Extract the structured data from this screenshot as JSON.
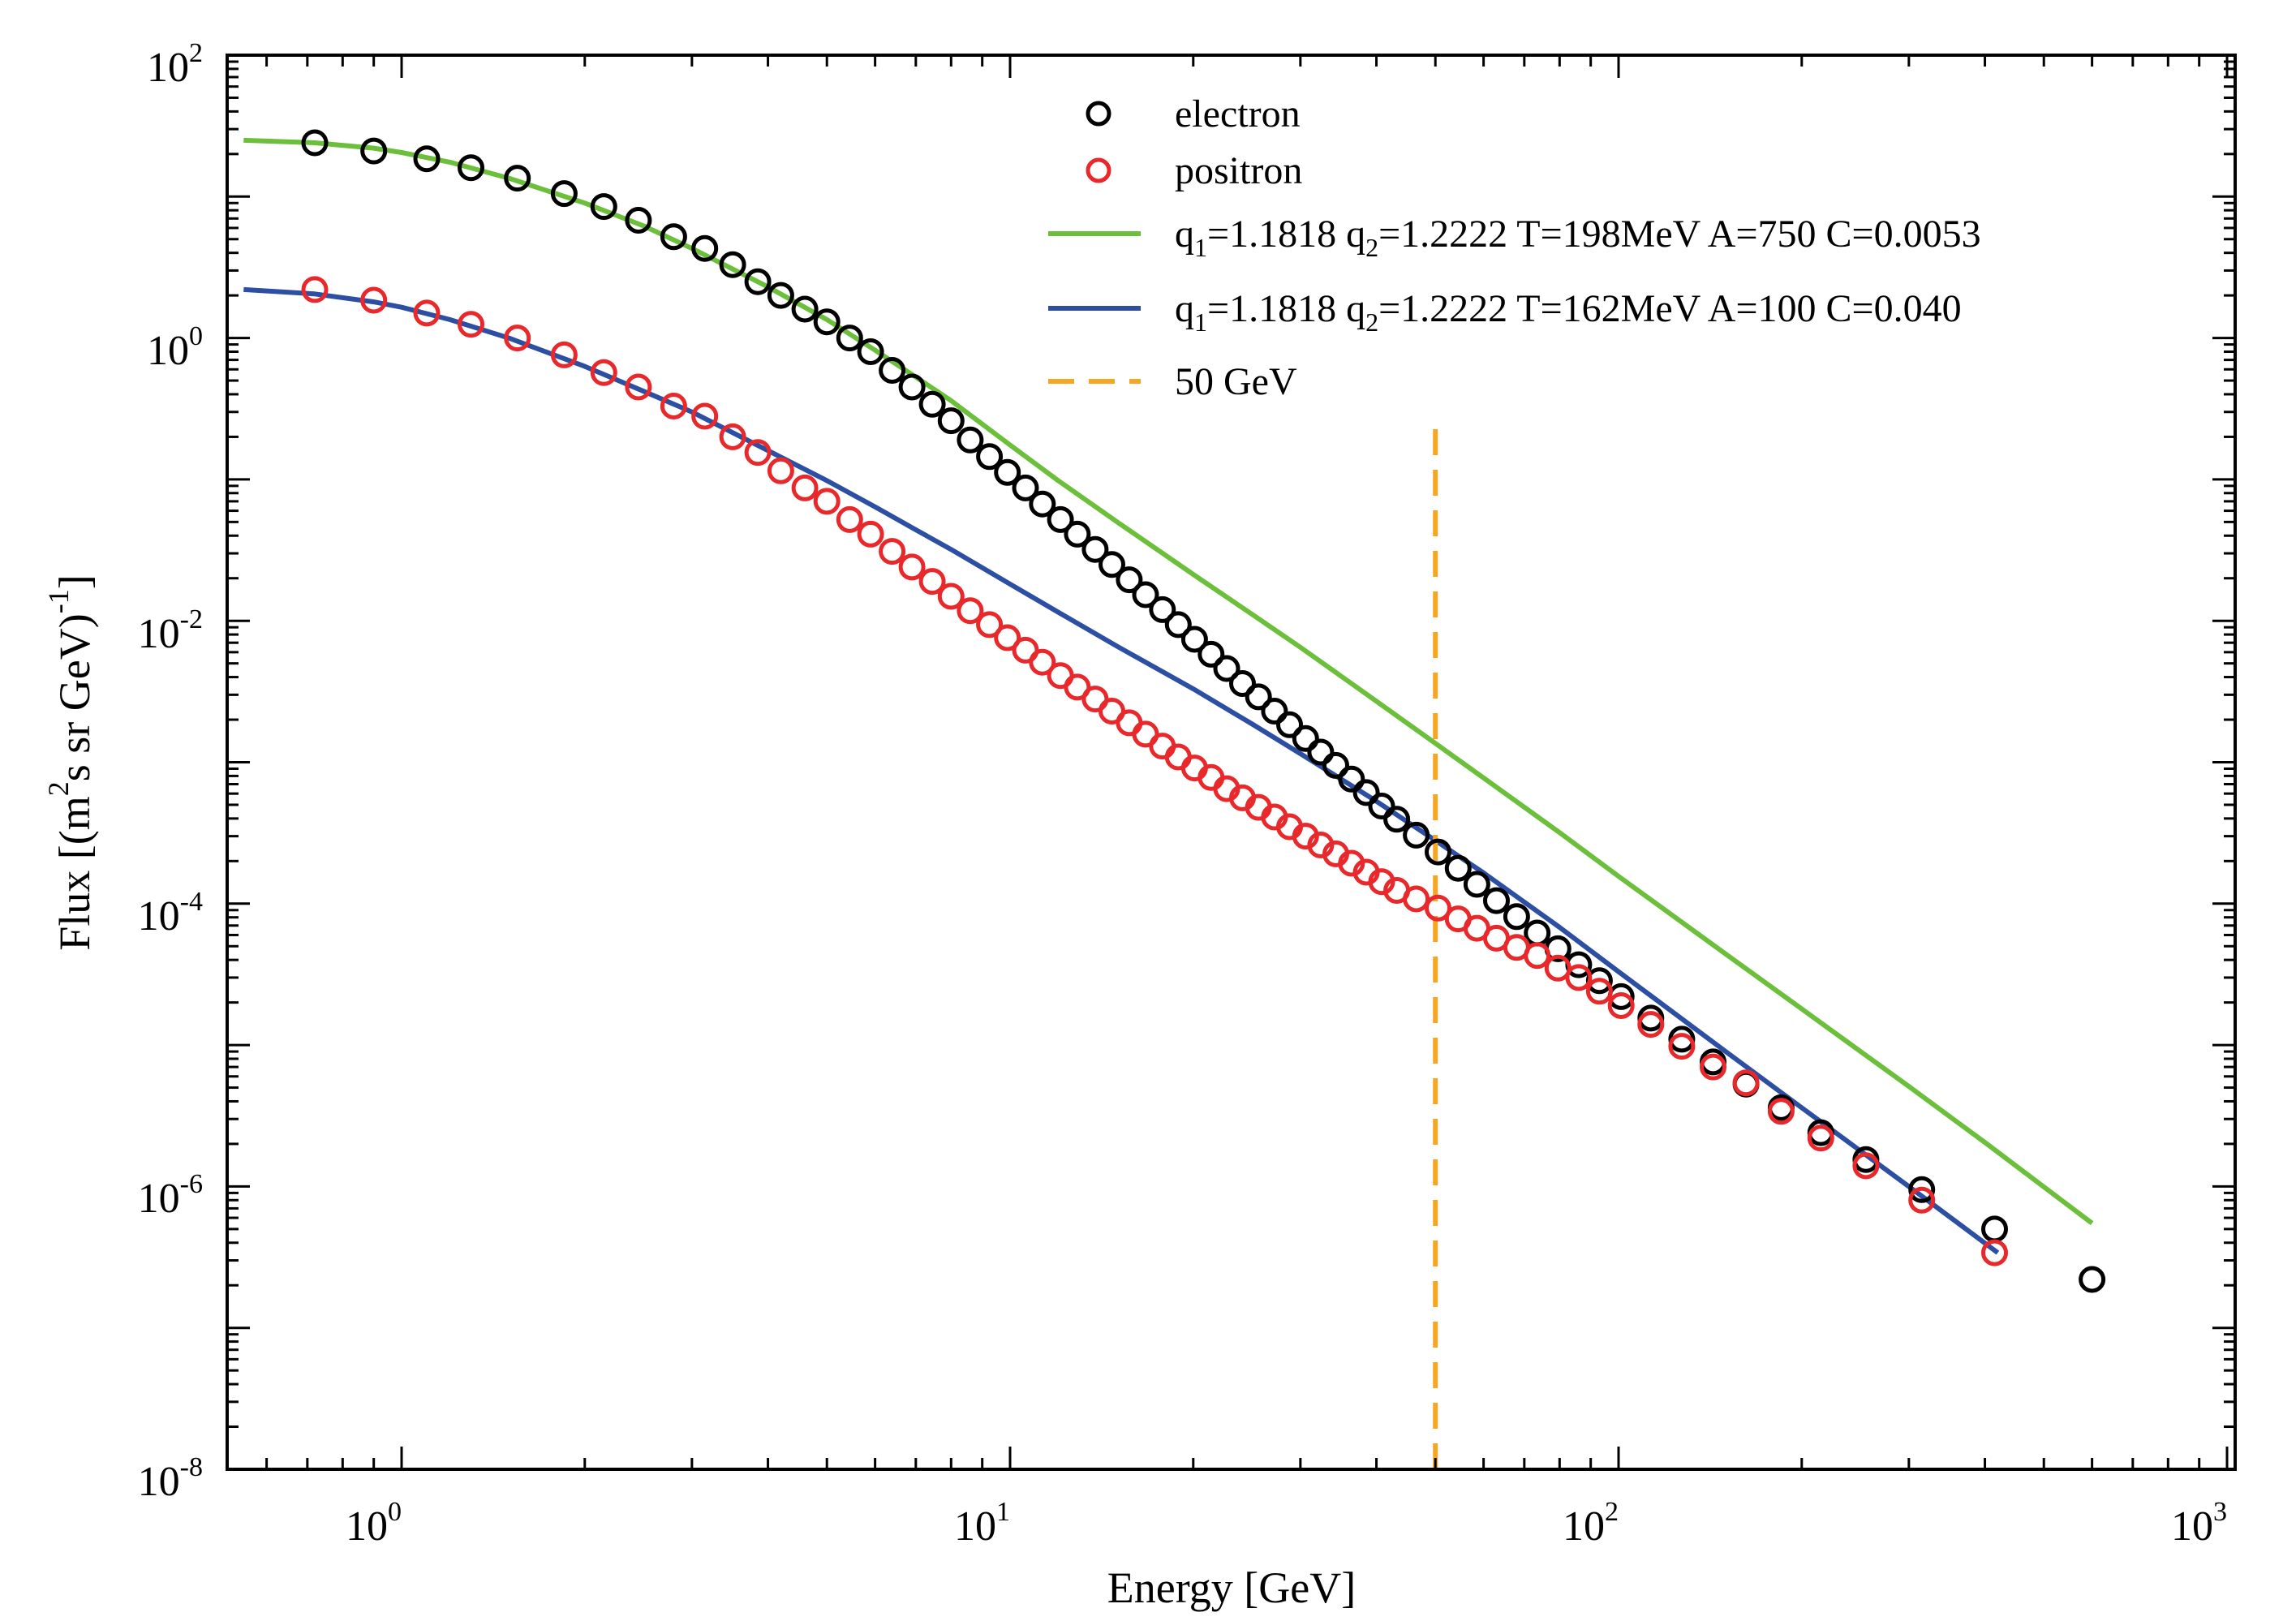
{
  "chart_data": {
    "type": "scatter",
    "xlabel": "Energy [GeV]",
    "ylabel": {
      "prefix": "Flux [(m",
      "exp1": "2",
      "mid": "s sr GeV)",
      "exp2": "-1",
      "suffix": "]"
    },
    "xscale": "log",
    "yscale": "log",
    "xlim": [
      0.55,
      1000
    ],
    "ylim": [
      1e-08,
      100
    ],
    "x_ticks": [
      {
        "base": "10",
        "exp": "0",
        "value": 1
      },
      {
        "base": "10",
        "exp": "1",
        "value": 10
      },
      {
        "base": "10",
        "exp": "2",
        "value": 100
      },
      {
        "base": "10",
        "exp": "3",
        "value": 1000
      }
    ],
    "y_ticks": [
      {
        "base": "10",
        "exp": "2",
        "value": 100
      },
      {
        "base": "10",
        "exp": "0",
        "value": 1
      },
      {
        "base": "10",
        "exp": "-2",
        "value": 0.01
      },
      {
        "base": "10",
        "exp": "-4",
        "value": 0.0001
      },
      {
        "base": "10",
        "exp": "-6",
        "value": 1e-06
      },
      {
        "base": "10",
        "exp": "-8",
        "value": 1e-08
      }
    ],
    "grid": false,
    "legend_position": "top-right",
    "series": [
      {
        "name": "electron",
        "kind": "markers",
        "color": "#000000",
        "x": [
          0.72,
          0.9,
          1.1,
          1.3,
          1.55,
          1.85,
          2.15,
          2.45,
          2.8,
          3.15,
          3.5,
          3.85,
          4.2,
          4.6,
          5.0,
          5.45,
          5.9,
          6.4,
          6.9,
          7.45,
          8.0,
          8.6,
          9.25,
          9.9,
          10.6,
          11.3,
          12.1,
          12.9,
          13.8,
          14.7,
          15.7,
          16.7,
          17.8,
          18.9,
          20.1,
          21.4,
          22.7,
          24.1,
          25.6,
          27.2,
          28.8,
          30.6,
          32.4,
          34.3,
          36.4,
          38.5,
          40.8,
          43.2,
          46.5,
          50.5,
          54.5,
          58.5,
          63.0,
          68.0,
          73.5,
          79.5,
          86.0,
          93.0,
          101.0,
          113.0,
          127.0,
          143.0,
          162.0,
          185.0,
          215.0,
          255.0,
          315.0,
          415.0,
          600.0
        ],
        "y": [
          24,
          21,
          18.5,
          16,
          13.5,
          10.5,
          8.5,
          6.8,
          5.2,
          4.3,
          3.3,
          2.5,
          2.0,
          1.6,
          1.3,
          1.0,
          0.8,
          0.59,
          0.45,
          0.34,
          0.26,
          0.19,
          0.145,
          0.112,
          0.087,
          0.067,
          0.052,
          0.041,
          0.032,
          0.025,
          0.0195,
          0.0153,
          0.012,
          0.0094,
          0.0074,
          0.0058,
          0.0046,
          0.0036,
          0.0029,
          0.0023,
          0.00184,
          0.00147,
          0.00118,
          0.00095,
          0.00076,
          0.00061,
          0.00049,
          0.000395,
          0.000305,
          0.000232,
          0.000178,
          0.000137,
          0.000105,
          8.1e-05,
          6.2e-05,
          4.8e-05,
          3.7e-05,
          2.85e-05,
          2.2e-05,
          1.55e-05,
          1.1e-05,
          7.6e-06,
          5.3e-06,
          3.6e-06,
          2.4e-06,
          1.55e-06,
          9.5e-07,
          5e-07,
          2.2e-07
        ]
      },
      {
        "name": "positron",
        "kind": "markers",
        "color": "#e8282b",
        "x": [
          0.72,
          0.9,
          1.1,
          1.3,
          1.55,
          1.85,
          2.15,
          2.45,
          2.8,
          3.15,
          3.5,
          3.85,
          4.2,
          4.6,
          5.0,
          5.45,
          5.9,
          6.4,
          6.9,
          7.45,
          8.0,
          8.6,
          9.25,
          9.9,
          10.6,
          11.3,
          12.1,
          12.9,
          13.8,
          14.7,
          15.7,
          16.7,
          17.8,
          18.9,
          20.1,
          21.4,
          22.7,
          24.1,
          25.6,
          27.2,
          28.8,
          30.6,
          32.4,
          34.3,
          36.4,
          38.5,
          40.8,
          43.2,
          46.5,
          50.5,
          54.5,
          58.5,
          63.0,
          68.0,
          73.5,
          79.5,
          86.0,
          93.0,
          101.0,
          113.0,
          127.0,
          143.0,
          162.0,
          185.0,
          215.0,
          255.0,
          315.0,
          415.0
        ],
        "y": [
          2.2,
          1.85,
          1.5,
          1.25,
          1.0,
          0.76,
          0.57,
          0.45,
          0.33,
          0.28,
          0.2,
          0.155,
          0.115,
          0.087,
          0.07,
          0.052,
          0.041,
          0.031,
          0.024,
          0.019,
          0.0149,
          0.0118,
          0.0094,
          0.0076,
          0.0062,
          0.0051,
          0.0041,
          0.0034,
          0.0028,
          0.0023,
          0.0019,
          0.00158,
          0.0013,
          0.00109,
          0.00091,
          0.00078,
          0.00065,
          0.00056,
          0.00048,
          0.00041,
          0.00035,
          0.0003,
          0.00026,
          0.000225,
          0.000193,
          0.000167,
          0.000143,
          0.000124,
          0.000108,
          9.3e-05,
          7.8e-05,
          6.7e-05,
          5.7e-05,
          4.9e-05,
          4.3e-05,
          3.5e-05,
          3e-05,
          2.4e-05,
          1.9e-05,
          1.4e-05,
          9.8e-06,
          7e-06,
          5.4e-06,
          3.4e-06,
          2.2e-06,
          1.4e-06,
          8e-07,
          3.4e-07
        ]
      },
      {
        "name_parts": [
          "q",
          "1",
          "=1.1818 q",
          "2",
          "=1.2222 T=198MeV A=750 C=0.0053"
        ],
        "kind": "line",
        "color": "#6bbf3b",
        "x": [
          0.55,
          0.72,
          0.9,
          1.0,
          1.2,
          1.5,
          2.0,
          2.5,
          3.0,
          4.0,
          5.0,
          6.0,
          7.0,
          8.0,
          10.0,
          12.0,
          15.0,
          20.0,
          25.0,
          30.0,
          40.0,
          50.0,
          60.0,
          80.0,
          100.0,
          150.0,
          200.0,
          300.0,
          400.0,
          600.0
        ],
        "y": [
          25,
          24,
          22,
          20.5,
          17.5,
          13.5,
          9.0,
          6.2,
          4.3,
          2.3,
          1.35,
          0.82,
          0.53,
          0.36,
          0.175,
          0.098,
          0.05,
          0.0213,
          0.0111,
          0.0065,
          0.0027,
          0.00136,
          0.000775,
          0.000318,
          0.000156,
          4.4e-05,
          1.8e-05,
          5.1e-06,
          2.05e-06,
          5.5e-07
        ]
      },
      {
        "name_parts": [
          "q",
          "1",
          "=1.1818 q",
          "2",
          "=1.2222 T=162MeV A=100 C=0.040"
        ],
        "kind": "line",
        "color": "#2c4ea3",
        "x": [
          0.55,
          0.72,
          0.9,
          1.0,
          1.2,
          1.5,
          2.0,
          2.5,
          3.0,
          4.0,
          5.0,
          6.0,
          7.0,
          8.0,
          10.0,
          12.0,
          15.0,
          20.0,
          25.0,
          30.0,
          40.0,
          50.0,
          60.0,
          80.0,
          100.0,
          150.0,
          200.0,
          300.0,
          420.0
        ],
        "y": [
          2.2,
          2.05,
          1.8,
          1.65,
          1.35,
          1.0,
          0.63,
          0.42,
          0.3,
          0.16,
          0.098,
          0.064,
          0.044,
          0.032,
          0.0182,
          0.0115,
          0.0066,
          0.0033,
          0.00186,
          0.00115,
          0.00053,
          0.00028,
          0.000165,
          6.8e-05,
          3.3e-05,
          9e-06,
          3.6e-06,
          1e-06,
          3.4e-07
        ]
      },
      {
        "name": "50 GeV",
        "kind": "vline",
        "color": "#f5a623",
        "x_value": 50,
        "y_range": [
          1e-08,
          0.25
        ]
      }
    ]
  }
}
